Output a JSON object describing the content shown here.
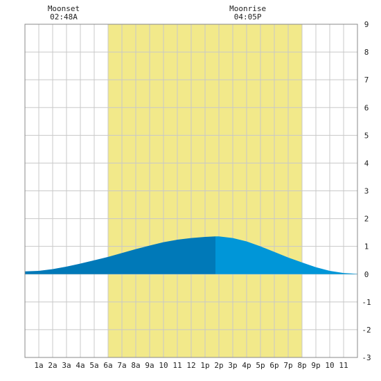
{
  "chart_data": {
    "type": "area",
    "title": "",
    "xlabel": "",
    "ylabel": "",
    "xlim": [
      0,
      24
    ],
    "ylim": [
      -3,
      9
    ],
    "grid": true,
    "x_tick_labels": [
      "1a",
      "2a",
      "3a",
      "4a",
      "5a",
      "6a",
      "7a",
      "8a",
      "9a",
      "10",
      "11",
      "12",
      "1p",
      "2p",
      "3p",
      "4p",
      "5p",
      "6p",
      "7p",
      "8p",
      "9p",
      "10",
      "11"
    ],
    "y_ticks": [
      -3,
      -2,
      -1,
      0,
      1,
      2,
      3,
      4,
      5,
      6,
      7,
      8,
      9
    ],
    "daylight": {
      "start": 6.0,
      "end": 20.0,
      "color": "#f2e98a"
    },
    "events": [
      {
        "label": "Moonset",
        "time": "02:48A",
        "x": 2.8
      },
      {
        "label": "Moonrise",
        "time": "04:05P",
        "x": 16.08
      }
    ],
    "split_x": 13.75,
    "colors": {
      "before_peak": "#0079b8",
      "after_peak": "#0096d8",
      "grid": "#c8c8c8",
      "frame": "#888888"
    },
    "series": [
      {
        "x": [
          0,
          1,
          2,
          3,
          4,
          5,
          6,
          7,
          8,
          9,
          10,
          11,
          12,
          13,
          13.75,
          14,
          15,
          16,
          17,
          18,
          19,
          20,
          21,
          22,
          23,
          24
        ],
        "y": [
          0.1,
          0.12,
          0.18,
          0.27,
          0.38,
          0.5,
          0.62,
          0.76,
          0.9,
          1.03,
          1.15,
          1.24,
          1.3,
          1.34,
          1.36,
          1.36,
          1.3,
          1.18,
          1.0,
          0.8,
          0.6,
          0.42,
          0.25,
          0.12,
          0.04,
          0.01
        ]
      }
    ]
  }
}
